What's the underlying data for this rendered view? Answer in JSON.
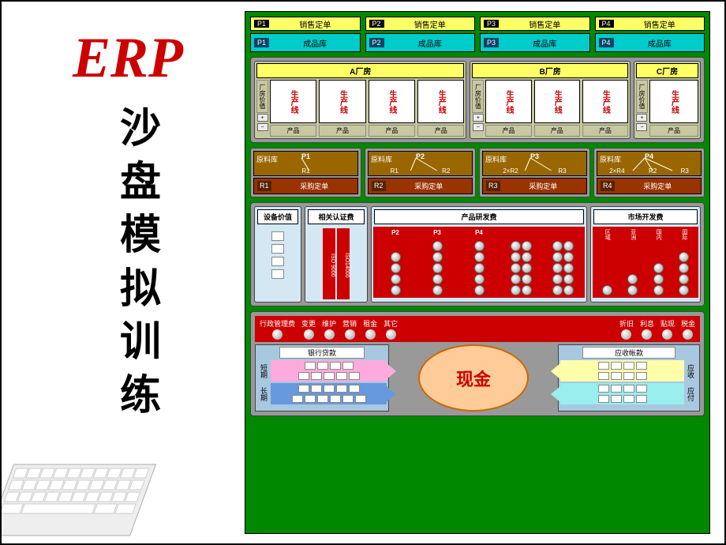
{
  "title": {
    "erp": "ERP",
    "chinese": [
      "沙",
      "盘",
      "模",
      "拟",
      "训",
      "练"
    ]
  },
  "colors": {
    "board_bg": "#008800",
    "section_bg": "#999999",
    "yellow": "#ffff66",
    "cyan": "#00cccc",
    "red": "#cc0000",
    "brown_light": "#996600",
    "brown_dark": "#993300",
    "lightblue": "#d4e8f4",
    "pink": "#ffaadd",
    "blue": "#6699dd",
    "cash_bg": "#ffcc99",
    "recv_yellow": "#ffffaa",
    "recv_cyan": "#99eeee"
  },
  "top": {
    "sales_label": "销售定单",
    "stock_label": "成品库",
    "items": [
      {
        "p": "P1"
      },
      {
        "p": "P2"
      },
      {
        "p": "P3"
      },
      {
        "p": "P4"
      }
    ]
  },
  "factories": {
    "side_label": "厂房价值",
    "prod_line": "生产线",
    "prod_label": "产品",
    "list": [
      {
        "name": "A厂房",
        "lines": 4
      },
      {
        "name": "B厂房",
        "lines": 3
      },
      {
        "name": "C厂房",
        "lines": 1
      }
    ]
  },
  "raw": {
    "store_label": "原料库",
    "order_label": "采购定单",
    "items": [
      {
        "p": "P1",
        "r": "R1",
        "rlabels": [
          "R1"
        ]
      },
      {
        "p": "P2",
        "r": "R2",
        "rlabels": [
          "R1",
          "R2"
        ]
      },
      {
        "p": "P3",
        "r": "R3",
        "rlabels": [
          "2×R2",
          "R3"
        ]
      },
      {
        "p": "P4",
        "r": "R4",
        "rlabels": [
          "2×R4",
          "R2",
          "R3"
        ]
      }
    ]
  },
  "dev": {
    "equip": {
      "title": "设备价值",
      "slots": 4
    },
    "cert": {
      "title": "相关认证费",
      "cols": [
        "ISO 9000",
        "ISO14000"
      ]
    },
    "product": {
      "title": "产品研发费",
      "cols": [
        {
          "label": "P2",
          "balls": 4,
          "twin": false
        },
        {
          "label": "P3",
          "balls": 5,
          "twin": false
        },
        {
          "label": "P4",
          "balls": 5,
          "twin": false
        },
        {
          "label": "",
          "balls": 5,
          "twin": true
        },
        {
          "label": "",
          "balls": 5,
          "twin": true
        }
      ]
    },
    "market": {
      "title": "市场开发费",
      "cols": [
        {
          "label": "区域",
          "balls": 1
        },
        {
          "label": "亚洲",
          "balls": 2
        },
        {
          "label": "国内",
          "balls": 3
        },
        {
          "label": "国际",
          "balls": 4
        }
      ]
    }
  },
  "expenses": {
    "left": [
      "行政管理费",
      "变更",
      "维护",
      "营销",
      "租金",
      "其它"
    ],
    "right": [
      "折旧",
      "利息",
      "贴现",
      "税金"
    ]
  },
  "finance": {
    "loan_title": "银行贷款",
    "short_label": "短期",
    "long_label": "长期",
    "cash": "现金",
    "recv_title": "应收帐款",
    "recv_label": "应收",
    "pay_label": "应付"
  }
}
